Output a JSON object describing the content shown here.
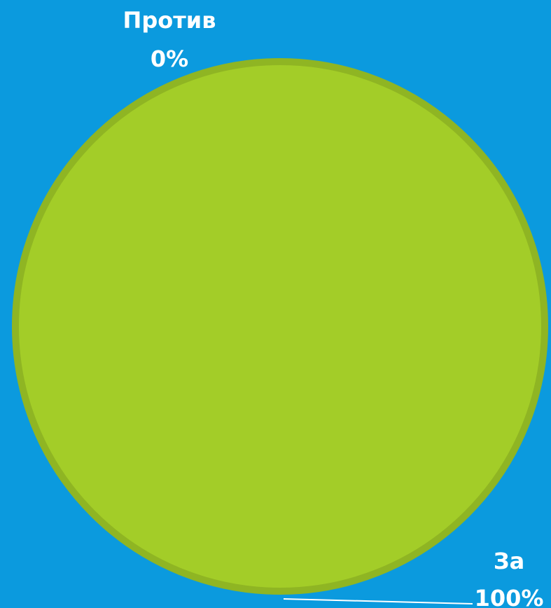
{
  "chart_data": {
    "type": "pie",
    "slices": [
      {
        "label": "Против",
        "value": 0,
        "percent_label": "0%"
      },
      {
        "label": "За",
        "value": 100,
        "percent_label": "100%"
      }
    ],
    "colors": {
      "background": "#0b9ade",
      "slice_fill": "#a3cd28",
      "slice_border": "#8fb523",
      "leader_line": "#ffffff",
      "label_text": "#ffffff"
    }
  }
}
